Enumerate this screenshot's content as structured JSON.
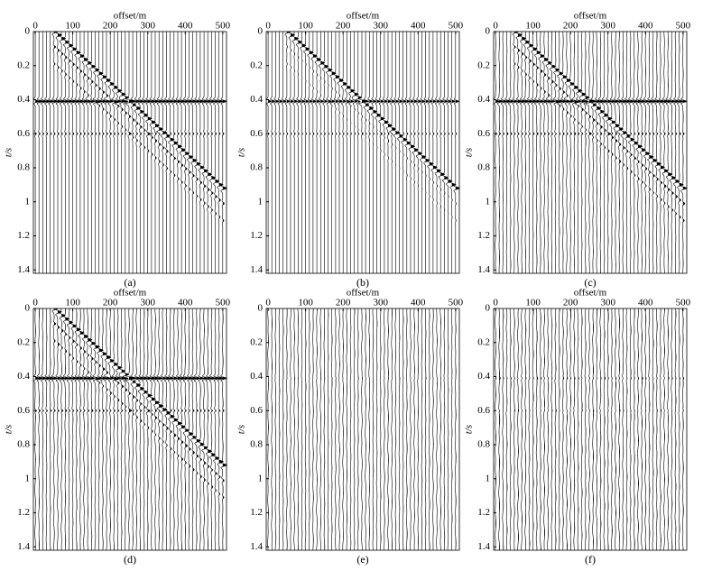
{
  "chart_data": [
    {
      "type": "seismic",
      "x_label": "offset/m",
      "y_label": "t/s",
      "caption": "(a)",
      "xlim": [
        -5,
        510
      ],
      "ylim": [
        0,
        1.42
      ],
      "xticks": [
        0,
        100,
        200,
        300,
        400,
        500
      ],
      "yticks": [
        0,
        0.2,
        0.4,
        0.6,
        0.8,
        1,
        1.2,
        1.4
      ]
    },
    {
      "type": "seismic",
      "x_label": "offset/m",
      "y_label": "t/s",
      "caption": "(b)",
      "xlim": [
        -5,
        510
      ],
      "ylim": [
        0,
        1.42
      ],
      "xticks": [
        0,
        100,
        200,
        300,
        400,
        500
      ],
      "yticks": [
        0,
        0.2,
        0.4,
        0.6,
        0.8,
        1,
        1.2,
        1.4
      ]
    },
    {
      "type": "seismic",
      "x_label": "offset/m",
      "y_label": "t/s",
      "caption": "(c)",
      "xlim": [
        -5,
        510
      ],
      "ylim": [
        0,
        1.42
      ],
      "xticks": [
        0,
        100,
        200,
        300,
        400,
        500
      ],
      "yticks": [
        0,
        0.2,
        0.4,
        0.6,
        0.8,
        1,
        1.2,
        1.4
      ]
    },
    {
      "type": "seismic",
      "x_label": "offset/m",
      "y_label": "t/s",
      "caption": "(d)",
      "xlim": [
        -5,
        510
      ],
      "ylim": [
        0,
        1.42
      ],
      "xticks": [
        0,
        100,
        200,
        300,
        400,
        500
      ],
      "yticks": [
        0,
        0.2,
        0.4,
        0.6,
        0.8,
        1,
        1.2,
        1.4
      ]
    },
    {
      "type": "seismic",
      "x_label": "offset/m",
      "y_label": "t/s",
      "caption": "(e)",
      "xlim": [
        -5,
        510
      ],
      "ylim": [
        0,
        1.42
      ],
      "xticks": [
        0,
        100,
        200,
        300,
        400,
        500
      ],
      "yticks": [
        0,
        0.2,
        0.4,
        0.6,
        0.8,
        1,
        1.2,
        1.4
      ]
    },
    {
      "type": "seismic",
      "x_label": "offset/m",
      "y_label": "t/s",
      "caption": "(f)",
      "xlim": [
        -5,
        510
      ],
      "ylim": [
        0,
        1.42
      ],
      "xticks": [
        0,
        100,
        200,
        300,
        400,
        500
      ],
      "yticks": [
        0,
        0.2,
        0.4,
        0.6,
        0.8,
        1,
        1.2,
        1.4
      ]
    }
  ]
}
